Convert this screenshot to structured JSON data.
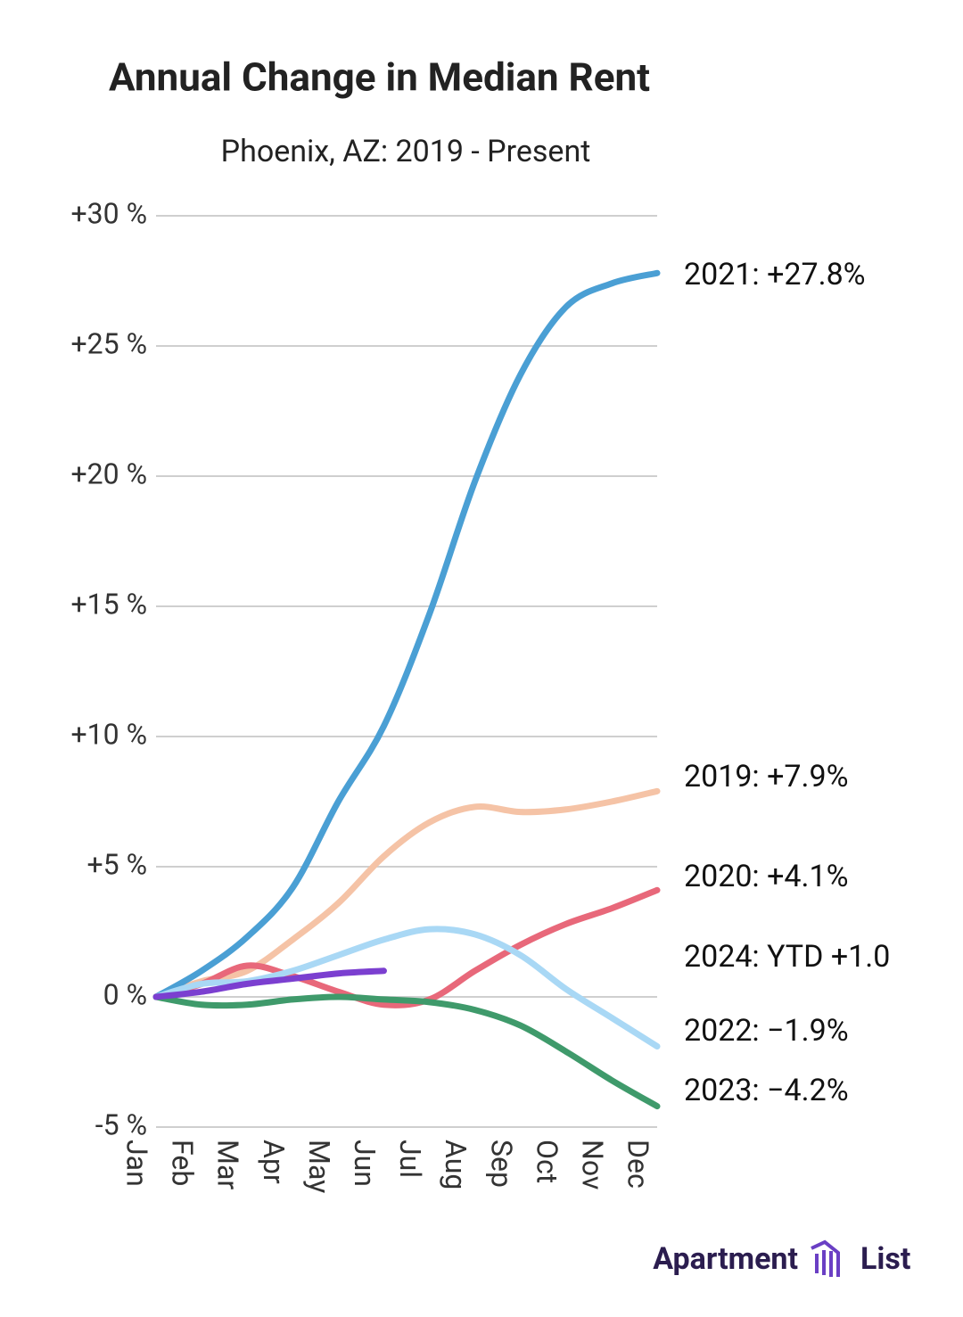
{
  "chart_data": {
    "type": "line",
    "title": "Annual Change in Median Rent",
    "subtitle": "Phoenix, AZ: 2019 - Present",
    "categories": [
      "Jan",
      "Feb",
      "Mar",
      "Apr",
      "May",
      "Jun",
      "Jul",
      "Aug",
      "Sep",
      "Oct",
      "Nov",
      "Dec"
    ],
    "ylim": [
      -5,
      30
    ],
    "yticks": [
      {
        "value": -5,
        "label": "-5 %"
      },
      {
        "value": 0,
        "label": "0 %"
      },
      {
        "value": 5,
        "label": "+5 %"
      },
      {
        "value": 10,
        "label": "+10 %"
      },
      {
        "value": 15,
        "label": "+15 %"
      },
      {
        "value": 20,
        "label": "+20 %"
      },
      {
        "value": 25,
        "label": "+25 %"
      },
      {
        "value": 30,
        "label": "+30 %"
      }
    ],
    "grid": true,
    "series": [
      {
        "name": "2019",
        "color": "#f5c3a6",
        "label": "2019: +7.9%",
        "values": [
          0,
          0.6,
          1.0,
          2.2,
          3.6,
          5.4,
          6.7,
          7.3,
          7.1,
          7.2,
          7.5,
          7.9
        ]
      },
      {
        "name": "2020",
        "color": "#e8687a",
        "label": "2020: +4.1%",
        "values": [
          0,
          0.5,
          1.2,
          0.8,
          0.2,
          -0.3,
          -0.1,
          1.0,
          2.0,
          2.8,
          3.4,
          4.1
        ]
      },
      {
        "name": "2021",
        "color": "#4a9fd4",
        "label": "2021: +27.8%",
        "values": [
          0,
          1.0,
          2.3,
          4.2,
          7.5,
          10.4,
          14.7,
          19.8,
          23.9,
          26.5,
          27.4,
          27.8
        ]
      },
      {
        "name": "2022",
        "color": "#a9d8f5",
        "label": "2022: −1.9%",
        "values": [
          0,
          0.5,
          0.6,
          1.0,
          1.6,
          2.2,
          2.6,
          2.4,
          1.6,
          0.3,
          -0.8,
          -1.9
        ]
      },
      {
        "name": "2023",
        "color": "#3f9a6b",
        "label": "2023: −4.2%",
        "values": [
          0,
          -0.3,
          -0.3,
          -0.1,
          0,
          -0.1,
          -0.2,
          -0.5,
          -1.1,
          -2.1,
          -3.2,
          -4.2
        ]
      },
      {
        "name": "2024",
        "color": "#7b3fd0",
        "label": "2024: YTD +1.0",
        "values": [
          0,
          0.2,
          0.5,
          0.7,
          0.9,
          1.0,
          null,
          null,
          null,
          null,
          null,
          null
        ]
      }
    ]
  },
  "logo": {
    "left": "Apartment",
    "right": "List"
  }
}
